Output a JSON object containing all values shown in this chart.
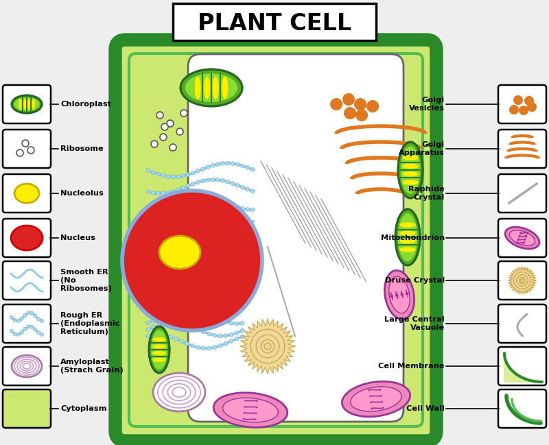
{
  "title": "PLANT CELL",
  "bg_color": "#eeeeee",
  "cell_wall_color": "#2a8a2a",
  "cell_membrane_color": "#55bb55",
  "cytoplasm_color": "#cce870",
  "vacuole_color": "#ffffff",
  "left_labels": [
    {
      "text": "Chloroplast"
    },
    {
      "text": "Ribosome"
    },
    {
      "text": "Nucleolus"
    },
    {
      "text": "Nucleus"
    },
    {
      "text": "Smooth ER\n(No\nRibosomes)"
    },
    {
      "text": "Rough ER\n(Endoplasmic\nReticulum)"
    },
    {
      "text": "Amyloplast\n(Strach Grain)"
    },
    {
      "text": "Cytoplasm"
    }
  ],
  "right_labels": [
    {
      "text": "Golgi\nVesicles"
    },
    {
      "text": "Golgi\nApparatus"
    },
    {
      "text": "Raphide\nCrystal"
    },
    {
      "text": "Mitochondrion"
    },
    {
      "text": "Druse Crystal"
    },
    {
      "text": "Large Central\nVacuole"
    },
    {
      "text": "Cell Membrane"
    },
    {
      "text": "Cell Wall"
    }
  ]
}
